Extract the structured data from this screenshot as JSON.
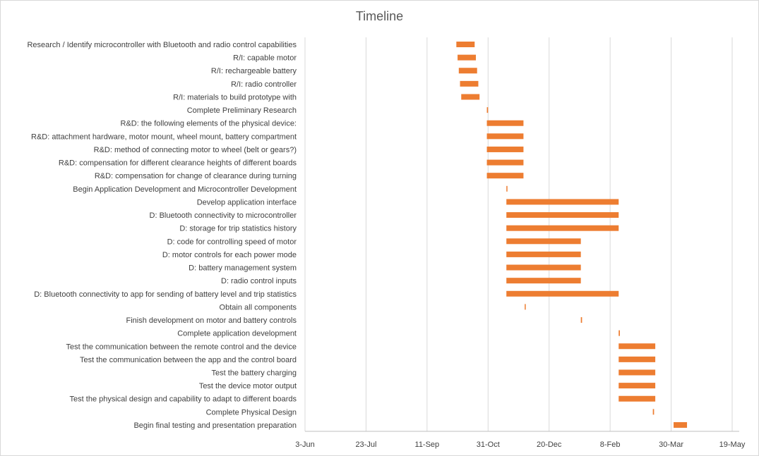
{
  "chart_data": {
    "type": "bar",
    "orientation": "horizontal-gantt",
    "title": "Timeline",
    "x_axis": {
      "ticks": [
        "3-Jun",
        "23-Jul",
        "11-Sep",
        "31-Oct",
        "20-Dec",
        "8-Feb",
        "30-Mar",
        "19-May"
      ],
      "range_days": [
        0,
        350
      ],
      "tick_interval_days": 50
    },
    "grid": "vertical",
    "bar_color": "#ed7d31",
    "tasks": [
      {
        "name": "Research / Identify microcontroller with Bluetooth and radio control capabilities",
        "start": 124,
        "duration": 15
      },
      {
        "name": "R/I: capable motor",
        "start": 125,
        "duration": 15
      },
      {
        "name": "R/I: rechargeable battery",
        "start": 126,
        "duration": 15
      },
      {
        "name": "R/I: radio controller",
        "start": 127,
        "duration": 15
      },
      {
        "name": "R/I: materials to build prototype with",
        "start": 128,
        "duration": 15
      },
      {
        "name": "Complete Preliminary Research",
        "start": 149,
        "duration": 1
      },
      {
        "name": "R&D: the following elements of the physical device:",
        "start": 149,
        "duration": 30
      },
      {
        "name": "R&D: attachment hardware, motor mount, wheel mount, battery compartment",
        "start": 149,
        "duration": 30
      },
      {
        "name": "R&D: method of connecting motor to wheel (belt or gears?)",
        "start": 149,
        "duration": 30
      },
      {
        "name": "R&D: compensation for different clearance heights of different boards",
        "start": 149,
        "duration": 30
      },
      {
        "name": "R&D: compensation for change of clearance during turning",
        "start": 149,
        "duration": 30
      },
      {
        "name": "Begin Application Development and Microcontroller Development",
        "start": 165,
        "duration": 0.5
      },
      {
        "name": "Develop application interface",
        "start": 165,
        "duration": 92
      },
      {
        "name": "D: Bluetooth connectivity to microcontroller",
        "start": 165,
        "duration": 92
      },
      {
        "name": "D: storage for trip statistics history",
        "start": 165,
        "duration": 92
      },
      {
        "name": "D: code for controlling speed of motor",
        "start": 165,
        "duration": 61
      },
      {
        "name": "D: motor controls for each power mode",
        "start": 165,
        "duration": 61
      },
      {
        "name": "D: battery management system",
        "start": 165,
        "duration": 61
      },
      {
        "name": "D: radio control inputs",
        "start": 165,
        "duration": 61
      },
      {
        "name": "D: Bluetooth connectivity to app for sending of battery level and trip statistics",
        "start": 165,
        "duration": 92
      },
      {
        "name": "Obtain all components",
        "start": 180,
        "duration": 0.5
      },
      {
        "name": "Finish development on motor and battery controls",
        "start": 226,
        "duration": 1
      },
      {
        "name": "Complete application development",
        "start": 257,
        "duration": 1
      },
      {
        "name": "Test the communication between the remote control and the device",
        "start": 257,
        "duration": 30
      },
      {
        "name": "Test the communication between the app and the control board",
        "start": 257,
        "duration": 30
      },
      {
        "name": "Test the battery charging",
        "start": 257,
        "duration": 30
      },
      {
        "name": "Test the device motor output",
        "start": 257,
        "duration": 30
      },
      {
        "name": "Test the physical design and capability to adapt to different boards",
        "start": 257,
        "duration": 30
      },
      {
        "name": "Complete Physical Design",
        "start": 285,
        "duration": 1
      },
      {
        "name": "Begin final testing and presentation preparation",
        "start": 302,
        "duration": 11
      }
    ]
  }
}
